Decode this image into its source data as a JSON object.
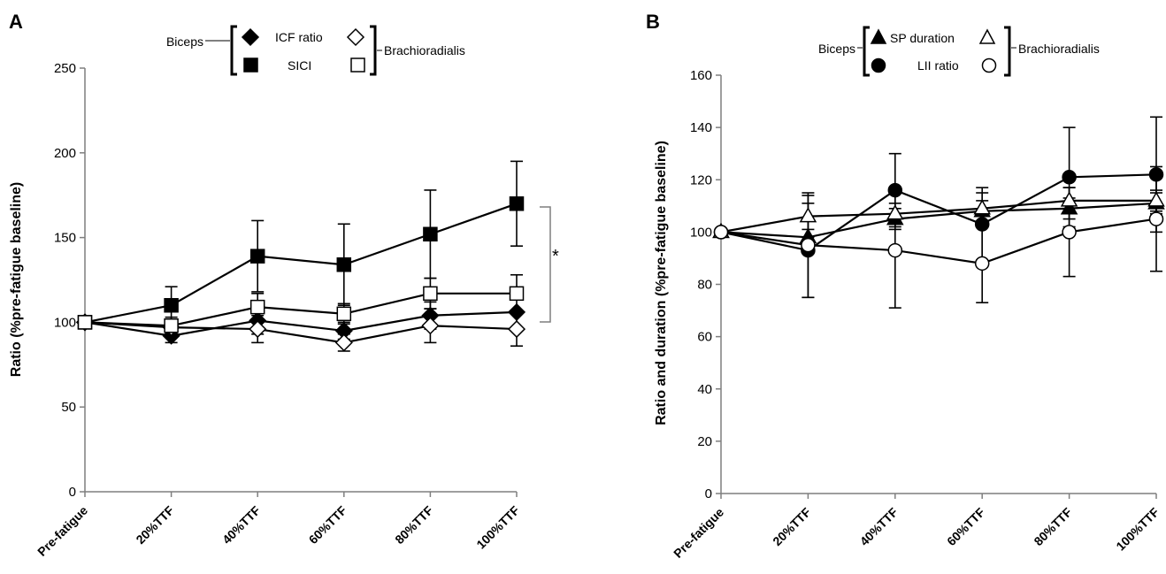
{
  "chart_data": [
    {
      "type": "line",
      "panel_label": "A",
      "ylabel": "Ratio (%pre-fatigue baseline)",
      "ylim": [
        0,
        250
      ],
      "yticks": [
        "0",
        "50",
        "100",
        "150",
        "200",
        "250"
      ],
      "categories": [
        "Pre-fatigue",
        "20%TTF",
        "40%TTF",
        "60%TTF",
        "80%TTF",
        "100%TTF"
      ],
      "legend": {
        "left_label": "Biceps",
        "right_label": "Brachioradialis",
        "rows": [
          "ICF ratio",
          "SICI"
        ]
      },
      "annotation": "*",
      "series": [
        {
          "name": "ICF ratio",
          "muscle": "Biceps",
          "marker": "diamond",
          "fill": "#000000",
          "values": [
            100,
            92,
            101,
            95,
            104,
            106
          ],
          "errors": [
            0,
            4,
            8,
            5,
            8,
            0
          ]
        },
        {
          "name": "ICF ratio",
          "muscle": "Brachioradialis",
          "marker": "diamond",
          "fill": "#ffffff",
          "values": [
            100,
            97,
            96,
            88,
            98,
            96
          ],
          "errors": [
            0,
            3,
            8,
            5,
            10,
            10
          ]
        },
        {
          "name": "SICI",
          "muscle": "Biceps",
          "marker": "square",
          "fill": "#000000",
          "values": [
            100,
            110,
            139,
            134,
            152,
            170
          ],
          "errors": [
            0,
            11,
            21,
            24,
            26,
            25
          ]
        },
        {
          "name": "SICI",
          "muscle": "Brachioradialis",
          "marker": "square",
          "fill": "#ffffff",
          "values": [
            100,
            98,
            109,
            105,
            117,
            117
          ],
          "errors": [
            0,
            5,
            8,
            6,
            9,
            11
          ]
        }
      ]
    },
    {
      "type": "line",
      "panel_label": "B",
      "ylabel": "Ratio and duration (%pre-fatigue baseline)",
      "ylim": [
        0,
        160
      ],
      "yticks": [
        "0",
        "20",
        "40",
        "60",
        "80",
        "100",
        "120",
        "140",
        "160"
      ],
      "categories": [
        "Pre-fatigue",
        "20%TTF",
        "40%TTF",
        "60%TTF",
        "80%TTF",
        "100%TTF"
      ],
      "legend": {
        "left_label": "Biceps",
        "right_label": "Brachioradialis",
        "rows": [
          "SP duration",
          "LII ratio"
        ]
      },
      "series": [
        {
          "name": "SP duration",
          "muscle": "Biceps",
          "marker": "triangle",
          "fill": "#000000",
          "values": [
            100,
            98,
            105,
            108,
            109,
            111
          ],
          "errors": [
            0,
            3,
            4,
            4,
            4,
            4
          ]
        },
        {
          "name": "SP duration",
          "muscle": "Brachioradialis",
          "marker": "triangle",
          "fill": "#ffffff",
          "values": [
            100,
            106,
            107,
            109,
            112,
            112
          ],
          "errors": [
            0,
            8,
            4,
            6,
            5,
            4
          ]
        },
        {
          "name": "LII ratio",
          "muscle": "Biceps",
          "marker": "circle",
          "fill": "#000000",
          "values": [
            100,
            93,
            116,
            103,
            121,
            122
          ],
          "errors": [
            0,
            18,
            14,
            14,
            19,
            22
          ]
        },
        {
          "name": "LII ratio",
          "muscle": "Brachioradialis",
          "marker": "circle",
          "fill": "#ffffff",
          "values": [
            100,
            95,
            93,
            88,
            100,
            105
          ],
          "errors": [
            0,
            20,
            22,
            15,
            17,
            20
          ]
        }
      ]
    }
  ]
}
